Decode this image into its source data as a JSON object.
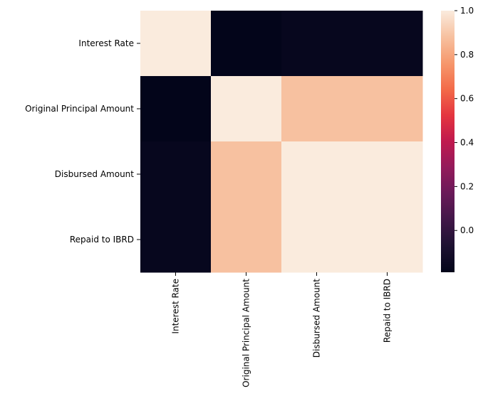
{
  "chart_data": {
    "type": "heatmap",
    "rows": [
      "Interest Rate",
      "Original Principal Amount",
      "Disbursed Amount",
      "Repaid to IBRD"
    ],
    "columns": [
      "Interest Rate",
      "Original Principal Amount",
      "Disbursed Amount",
      "Repaid to IBRD"
    ],
    "values": [
      [
        1.0,
        -0.19,
        -0.17,
        -0.17
      ],
      [
        -0.19,
        1.0,
        0.88,
        0.88
      ],
      [
        -0.17,
        0.88,
        1.0,
        1.0
      ],
      [
        -0.17,
        0.88,
        1.0,
        1.0
      ]
    ],
    "colorbar": {
      "min": -0.19,
      "max": 1.0,
      "ticks": [
        0.0,
        0.2,
        0.4,
        0.6,
        0.8,
        1.0
      ],
      "tick_labels": [
        "0.0",
        "0.2",
        "0.4",
        "0.6",
        "0.8",
        "1.0"
      ],
      "colormap": "rocket"
    },
    "title": "",
    "xlabel": "",
    "ylabel": ""
  }
}
